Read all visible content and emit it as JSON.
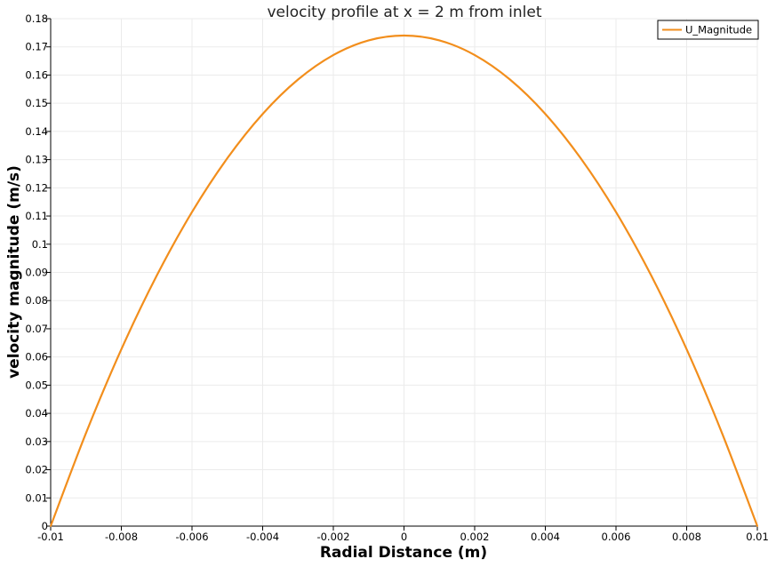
{
  "colors": {
    "series": "#f28e1c",
    "grid": "#ebebeb",
    "axis": "#000000",
    "background": "#ffffff"
  },
  "chart_data": {
    "type": "line",
    "title": "velocity profile at x = 2 m from inlet",
    "xlabel": "Radial Distance (m)",
    "ylabel": "velocity magnitude (m/s)",
    "xlim": [
      -0.01,
      0.01
    ],
    "ylim": [
      0,
      0.18
    ],
    "grid": true,
    "legend_position": "top-right",
    "x_ticks": [
      -0.01,
      -0.008,
      -0.006,
      -0.004,
      -0.002,
      0,
      0.002,
      0.004,
      0.006,
      0.008,
      0.01
    ],
    "x_tick_labels": [
      "-0.01",
      "-0.008",
      "-0.006",
      "-0.004",
      "-0.002",
      "0",
      "0.002",
      "0.004",
      "0.006",
      "0.008",
      "0.01"
    ],
    "y_ticks": [
      0,
      0.01,
      0.02,
      0.03,
      0.04,
      0.05,
      0.06,
      0.07,
      0.08,
      0.09,
      0.1,
      0.11,
      0.12,
      0.13,
      0.14,
      0.15,
      0.16,
      0.17,
      0.18
    ],
    "y_tick_labels": [
      "0",
      "0.01",
      "0.02",
      "0.03",
      "0.04",
      "0.05",
      "0.06",
      "0.07",
      "0.08",
      "0.09",
      "0.1",
      "0.11",
      "0.12",
      "0.13",
      "0.14",
      "0.15",
      "0.16",
      "0.17",
      "0.18"
    ],
    "series": [
      {
        "name": "U_Magnitude",
        "color": "#f28e1c",
        "x": [
          -0.01,
          -0.009,
          -0.008,
          -0.007,
          -0.006,
          -0.005,
          -0.004,
          -0.003,
          -0.002,
          -0.001,
          0,
          0.001,
          0.002,
          0.003,
          0.004,
          0.005,
          0.006,
          0.007,
          0.008,
          0.009,
          0.01
        ],
        "y": [
          0,
          0.033,
          0.0627,
          0.0888,
          0.1114,
          0.1305,
          0.1462,
          0.1584,
          0.1671,
          0.1723,
          0.174,
          0.1723,
          0.1671,
          0.1584,
          0.1462,
          0.1305,
          0.1114,
          0.0888,
          0.0627,
          0.033,
          0
        ]
      }
    ]
  }
}
